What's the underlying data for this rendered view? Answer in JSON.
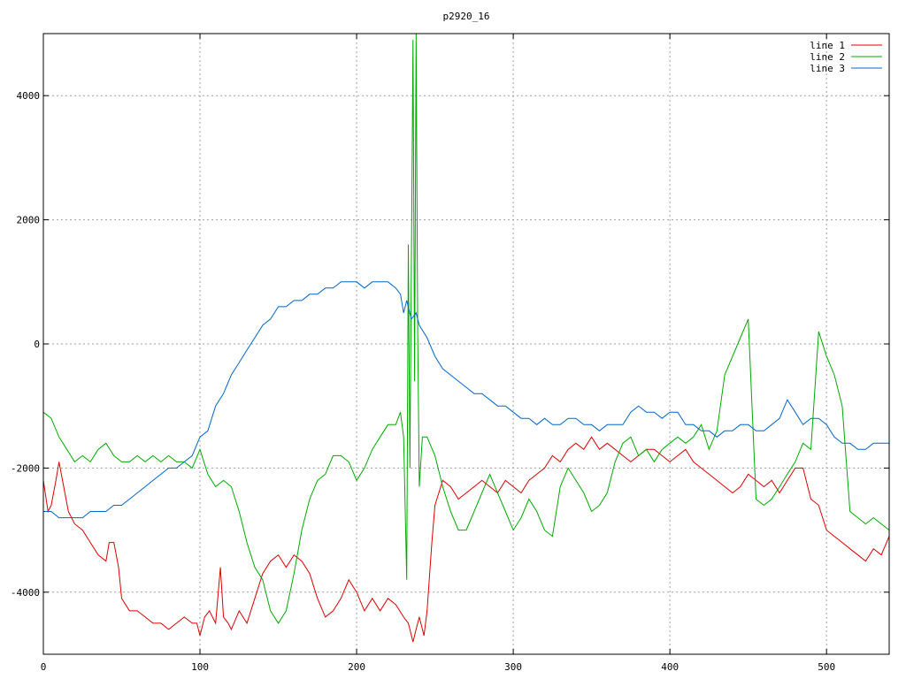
{
  "chart_data": {
    "type": "line",
    "title": "p2920_16",
    "xlabel": "",
    "ylabel": "",
    "xlim": [
      0,
      540
    ],
    "ylim": [
      -5000,
      5000
    ],
    "x_ticks": [
      0,
      100,
      200,
      300,
      400,
      500
    ],
    "y_ticks": [
      -4000,
      -2000,
      0,
      2000,
      4000
    ],
    "x_tick_labels": [
      "0",
      "100",
      "200",
      "300",
      "400",
      "500"
    ],
    "y_tick_labels": [
      "-4000",
      "-2000",
      "0",
      "2000",
      "4000"
    ],
    "grid": true,
    "legend_position": "top-right",
    "series": [
      {
        "name": "line 1",
        "color": "#dd0000",
        "x": [
          0,
          3,
          5,
          8,
          10,
          13,
          16,
          20,
          25,
          30,
          35,
          40,
          42,
          45,
          48,
          50,
          55,
          60,
          65,
          70,
          75,
          80,
          85,
          90,
          95,
          98,
          100,
          103,
          106,
          110,
          113,
          115,
          118,
          120,
          125,
          130,
          135,
          140,
          145,
          150,
          155,
          160,
          165,
          170,
          175,
          180,
          185,
          190,
          195,
          200,
          205,
          210,
          215,
          220,
          225,
          230,
          233,
          236,
          238,
          240,
          243,
          245,
          248,
          250,
          255,
          260,
          265,
          270,
          275,
          280,
          285,
          290,
          295,
          300,
          305,
          310,
          315,
          320,
          325,
          330,
          335,
          340,
          345,
          350,
          355,
          360,
          365,
          370,
          375,
          380,
          385,
          390,
          395,
          400,
          405,
          410,
          415,
          420,
          425,
          430,
          435,
          440,
          445,
          450,
          455,
          460,
          465,
          470,
          475,
          480,
          485,
          490,
          495,
          500,
          505,
          510,
          515,
          520,
          525,
          530,
          535,
          540
        ],
        "y": [
          -2200,
          -2700,
          -2600,
          -2200,
          -1900,
          -2300,
          -2700,
          -2900,
          -3000,
          -3200,
          -3400,
          -3500,
          -3200,
          -3200,
          -3600,
          -4100,
          -4300,
          -4300,
          -4400,
          -4500,
          -4500,
          -4600,
          -4500,
          -4400,
          -4500,
          -4500,
          -4700,
          -4400,
          -4300,
          -4500,
          -3600,
          -4400,
          -4500,
          -4600,
          -4300,
          -4500,
          -4100,
          -3700,
          -3500,
          -3400,
          -3600,
          -3400,
          -3500,
          -3700,
          -4100,
          -4400,
          -4300,
          -4100,
          -3800,
          -4000,
          -4300,
          -4100,
          -4300,
          -4100,
          -4200,
          -4400,
          -4500,
          -4800,
          -4600,
          -4400,
          -4700,
          -4300,
          -3200,
          -2600,
          -2200,
          -2300,
          -2500,
          -2400,
          -2300,
          -2200,
          -2300,
          -2400,
          -2200,
          -2300,
          -2400,
          -2200,
          -2100,
          -2000,
          -1800,
          -1900,
          -1700,
          -1600,
          -1700,
          -1500,
          -1700,
          -1600,
          -1700,
          -1800,
          -1900,
          -1800,
          -1700,
          -1700,
          -1800,
          -1900,
          -1800,
          -1700,
          -1900,
          -2000,
          -2100,
          -2200,
          -2300,
          -2400,
          -2300,
          -2100,
          -2200,
          -2300,
          -2200,
          -2400,
          -2200,
          -2000,
          -2000,
          -2500,
          -2600,
          -3000,
          -3100,
          -3200,
          -3300,
          -3400,
          -3500,
          -3300,
          -3400,
          -3100
        ]
      },
      {
        "name": "line 2",
        "color": "#00aa00",
        "x": [
          0,
          5,
          10,
          15,
          20,
          25,
          30,
          35,
          40,
          45,
          50,
          55,
          60,
          65,
          70,
          75,
          80,
          85,
          90,
          95,
          100,
          105,
          110,
          115,
          120,
          125,
          130,
          135,
          140,
          145,
          150,
          155,
          160,
          165,
          170,
          175,
          180,
          185,
          190,
          195,
          200,
          205,
          210,
          215,
          220,
          225,
          228,
          230,
          232,
          233,
          234,
          236,
          237,
          238,
          239,
          240,
          242,
          245,
          250,
          255,
          260,
          265,
          270,
          275,
          280,
          285,
          290,
          295,
          300,
          305,
          310,
          315,
          320,
          325,
          330,
          335,
          340,
          345,
          350,
          355,
          360,
          365,
          370,
          375,
          380,
          385,
          390,
          395,
          400,
          405,
          410,
          415,
          420,
          425,
          430,
          435,
          440,
          445,
          450,
          455,
          460,
          465,
          470,
          475,
          480,
          485,
          490,
          495,
          500,
          505,
          510,
          515,
          520,
          525,
          530,
          535,
          540
        ],
        "y": [
          -1100,
          -1200,
          -1500,
          -1700,
          -1900,
          -1800,
          -1900,
          -1700,
          -1600,
          -1800,
          -1900,
          -1900,
          -1800,
          -1900,
          -1800,
          -1900,
          -1800,
          -1900,
          -1900,
          -2000,
          -1700,
          -2100,
          -2300,
          -2200,
          -2300,
          -2700,
          -3200,
          -3600,
          -3800,
          -4300,
          -4500,
          -4300,
          -3700,
          -3000,
          -2500,
          -2200,
          -2100,
          -1800,
          -1800,
          -1900,
          -2200,
          -2000,
          -1700,
          -1500,
          -1300,
          -1300,
          -1100,
          -1500,
          -3800,
          1600,
          -2000,
          4900,
          -600,
          5000,
          200,
          -2300,
          -1500,
          -1500,
          -1800,
          -2300,
          -2700,
          -3000,
          -3000,
          -2700,
          -2400,
          -2100,
          -2400,
          -2700,
          -3000,
          -2800,
          -2500,
          -2700,
          -3000,
          -3100,
          -2300,
          -2000,
          -2200,
          -2400,
          -2700,
          -2600,
          -2400,
          -1900,
          -1600,
          -1500,
          -1800,
          -1700,
          -1900,
          -1700,
          -1600,
          -1500,
          -1600,
          -1500,
          -1300,
          -1700,
          -1400,
          -500,
          -200,
          100,
          400,
          -2500,
          -2600,
          -2500,
          -2300,
          -2100,
          -1900,
          -1600,
          -1700,
          200,
          -200,
          -500,
          -1000,
          -2700,
          -2800,
          -2900,
          -2800,
          -2900,
          -3000
        ]
      },
      {
        "name": "line 3",
        "color": "#0066cc",
        "x": [
          0,
          5,
          10,
          15,
          20,
          25,
          30,
          35,
          40,
          45,
          50,
          55,
          60,
          65,
          70,
          75,
          80,
          85,
          90,
          95,
          100,
          105,
          110,
          115,
          120,
          125,
          130,
          135,
          140,
          145,
          150,
          155,
          160,
          165,
          170,
          175,
          180,
          185,
          190,
          195,
          200,
          205,
          210,
          215,
          220,
          225,
          228,
          230,
          232,
          235,
          238,
          240,
          245,
          250,
          255,
          260,
          265,
          270,
          275,
          280,
          285,
          290,
          295,
          300,
          305,
          310,
          315,
          320,
          325,
          330,
          335,
          340,
          345,
          350,
          355,
          360,
          365,
          370,
          375,
          380,
          385,
          390,
          395,
          400,
          405,
          410,
          415,
          420,
          425,
          430,
          435,
          440,
          445,
          450,
          455,
          460,
          465,
          470,
          475,
          480,
          485,
          490,
          495,
          500,
          505,
          510,
          515,
          520,
          525,
          530,
          535,
          540
        ],
        "y": [
          -2700,
          -2700,
          -2800,
          -2800,
          -2800,
          -2800,
          -2700,
          -2700,
          -2700,
          -2600,
          -2600,
          -2500,
          -2400,
          -2300,
          -2200,
          -2100,
          -2000,
          -2000,
          -1900,
          -1800,
          -1500,
          -1400,
          -1000,
          -800,
          -500,
          -300,
          -100,
          100,
          300,
          400,
          600,
          600,
          700,
          700,
          800,
          800,
          900,
          900,
          1000,
          1000,
          1000,
          900,
          1000,
          1000,
          1000,
          900,
          800,
          500,
          700,
          400,
          500,
          300,
          100,
          -200,
          -400,
          -500,
          -600,
          -700,
          -800,
          -800,
          -900,
          -1000,
          -1000,
          -1100,
          -1200,
          -1200,
          -1300,
          -1200,
          -1300,
          -1300,
          -1200,
          -1200,
          -1300,
          -1300,
          -1400,
          -1300,
          -1300,
          -1300,
          -1100,
          -1000,
          -1100,
          -1100,
          -1200,
          -1100,
          -1100,
          -1300,
          -1300,
          -1400,
          -1400,
          -1500,
          -1400,
          -1400,
          -1300,
          -1300,
          -1400,
          -1400,
          -1300,
          -1200,
          -900,
          -1100,
          -1300,
          -1200,
          -1200,
          -1300,
          -1500,
          -1600,
          -1600,
          -1700,
          -1700,
          -1600,
          -1600,
          -1600
        ]
      }
    ]
  }
}
